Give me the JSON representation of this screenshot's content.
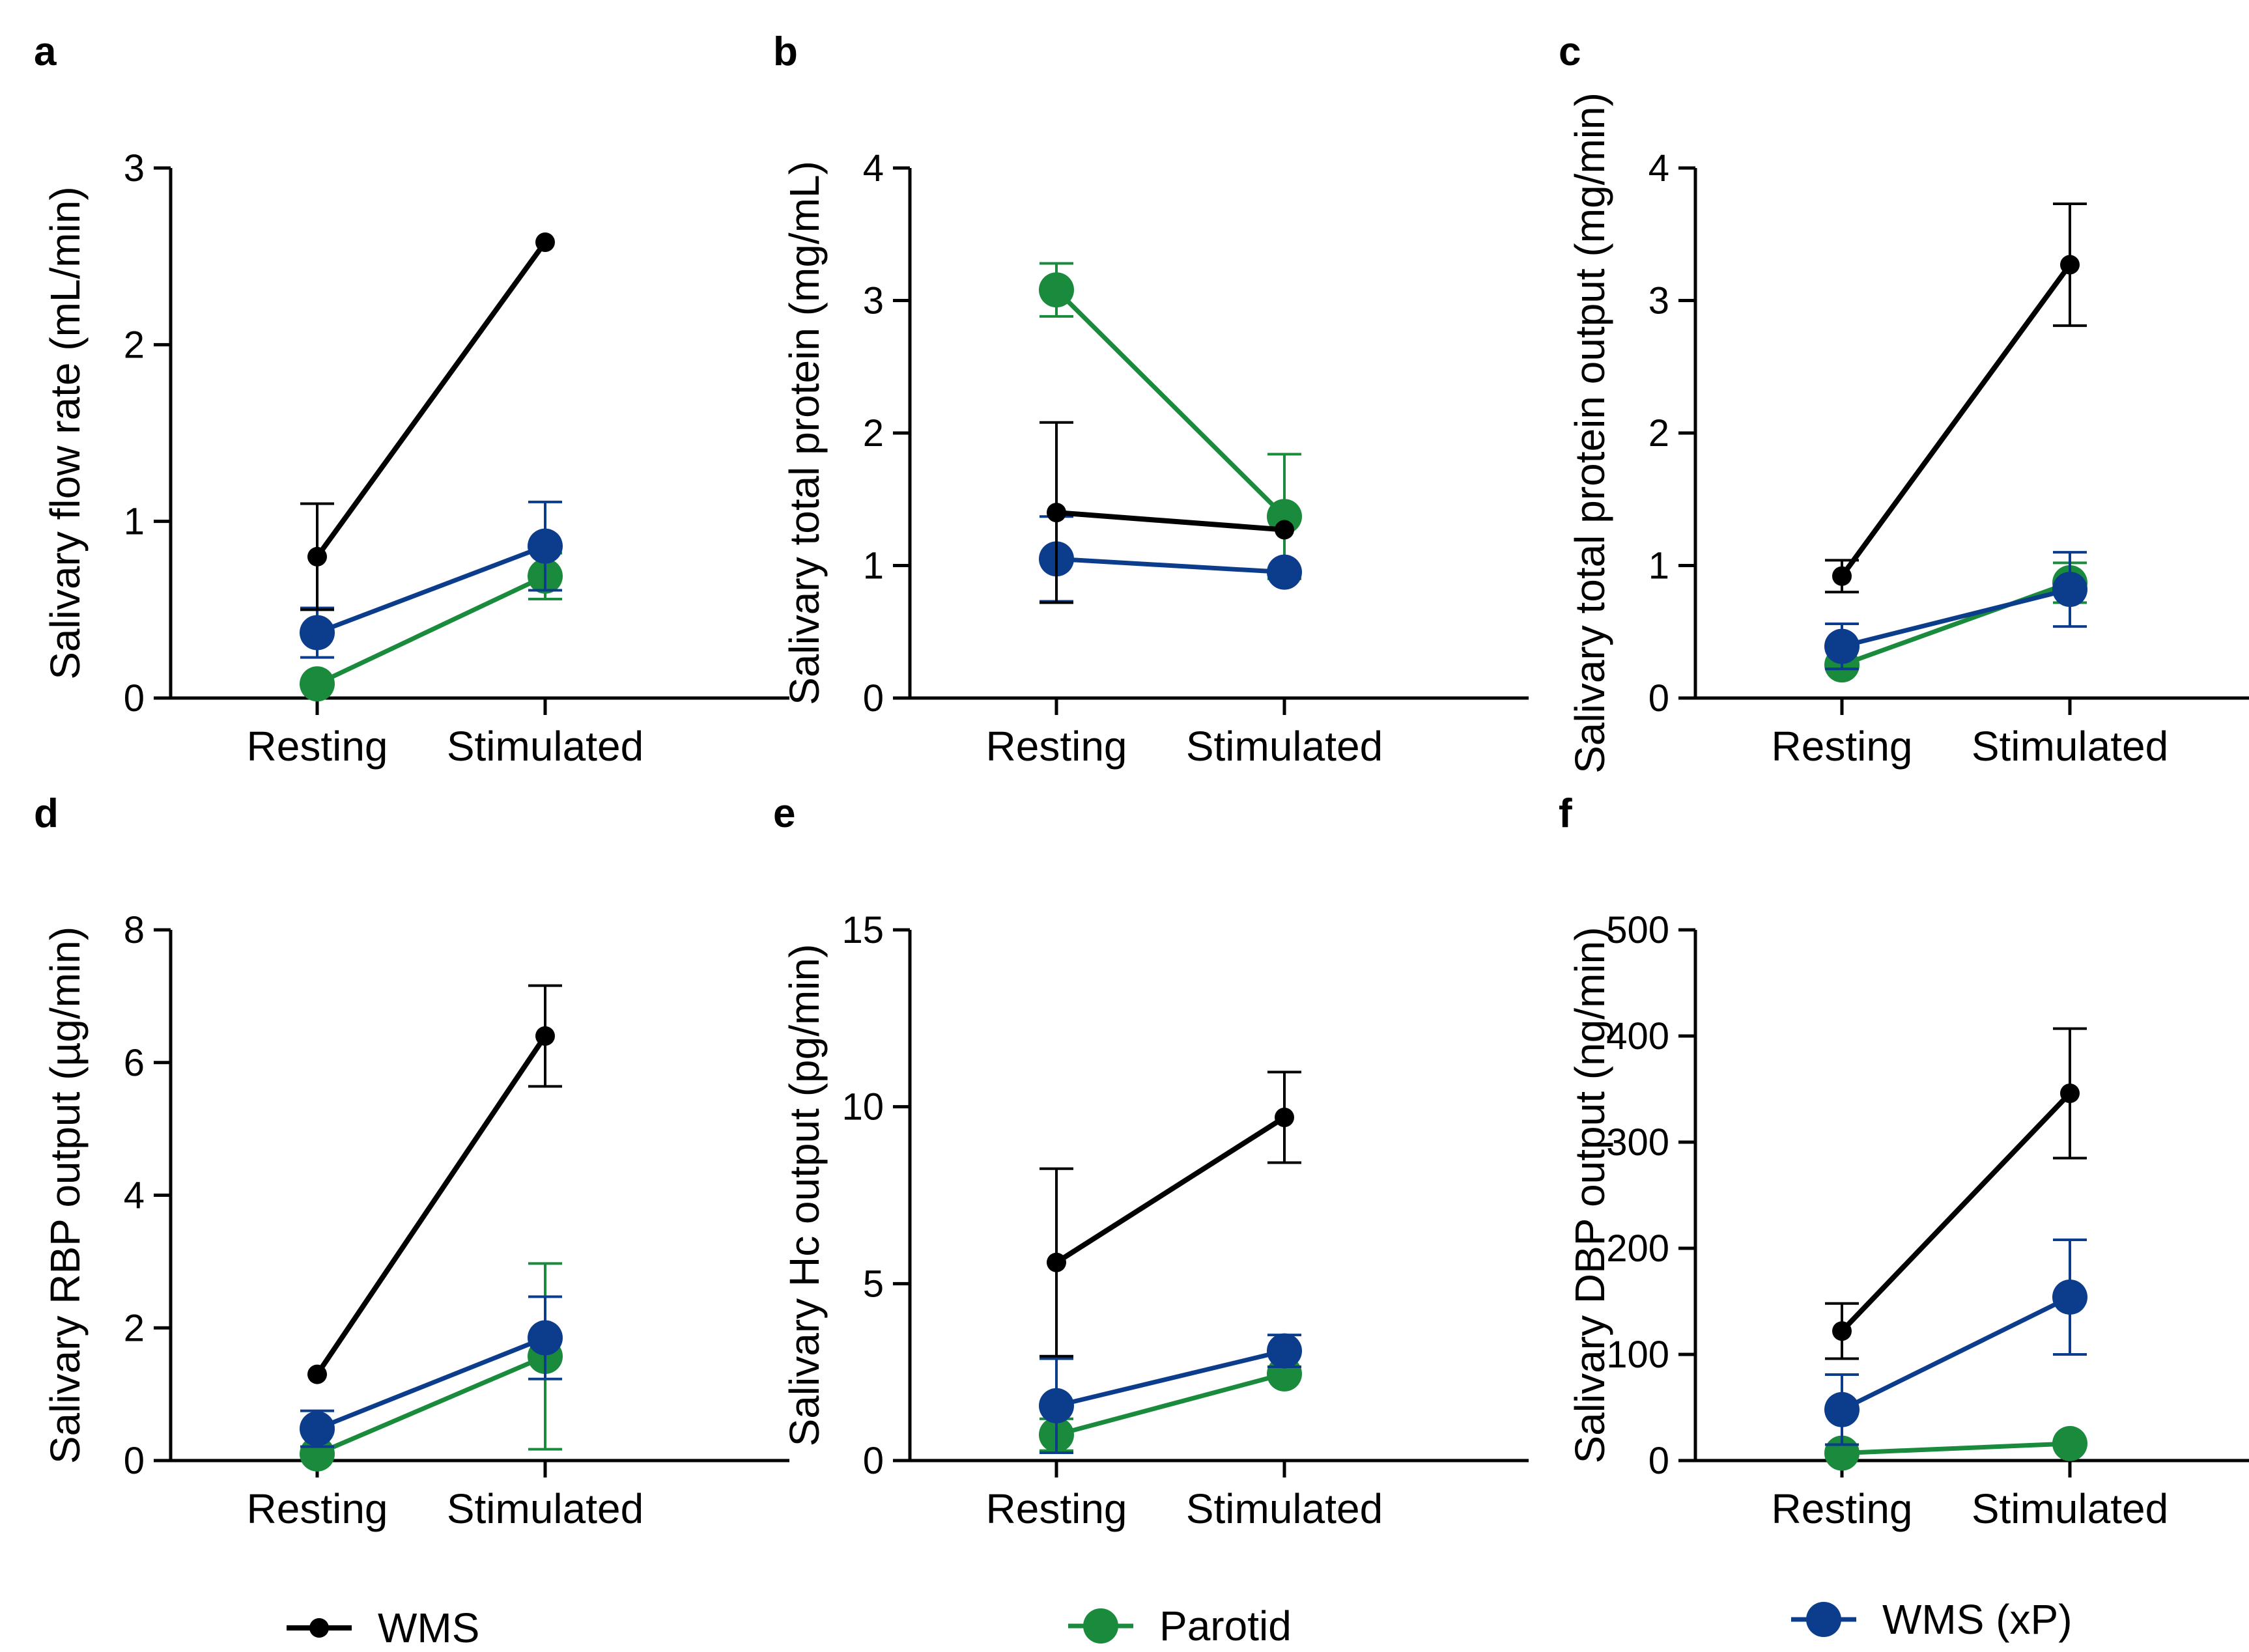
{
  "colors": {
    "WMS": "#000000",
    "Parotid": "#1a8a3c",
    "WMS (xP)": "#0b3d8c"
  },
  "legend": [
    "WMS",
    "Parotid",
    "WMS (xP)"
  ],
  "chart_data": [
    {
      "panel": "a",
      "type": "line",
      "categories": [
        "Resting",
        "Stimulated"
      ],
      "ylabel": "Salivary flow rate (mL/min)",
      "ylim": [
        0,
        3
      ],
      "yticks": [
        0,
        1,
        2,
        3
      ],
      "series": [
        {
          "name": "WMS",
          "values": [
            0.8,
            2.58
          ],
          "err": [
            0.3,
            0
          ]
        },
        {
          "name": "WMS (xP)",
          "values": [
            0.37,
            0.86
          ],
          "err": [
            0.14,
            0.25
          ]
        },
        {
          "name": "Parotid",
          "values": [
            0.08,
            0.69
          ],
          "err": [
            0,
            0.13
          ]
        }
      ]
    },
    {
      "panel": "b",
      "type": "line",
      "categories": [
        "Resting",
        "Stimulated"
      ],
      "ylabel": "Salivary total protein (mg/mL)",
      "ylim": [
        0,
        4
      ],
      "yticks": [
        0,
        1,
        2,
        3,
        4
      ],
      "series": [
        {
          "name": "WMS",
          "values": [
            1.4,
            1.27
          ],
          "err": [
            0.68,
            0
          ]
        },
        {
          "name": "WMS (xP)",
          "values": [
            1.05,
            0.95
          ],
          "err": [
            0.32,
            0
          ]
        },
        {
          "name": "Parotid",
          "values": [
            3.08,
            1.37
          ],
          "err": [
            0.2,
            0.47
          ]
        }
      ]
    },
    {
      "panel": "c",
      "type": "line",
      "categories": [
        "Resting",
        "Stimulated"
      ],
      "ylabel": "Salivary total protein output (mg/min)",
      "ylim": [
        0,
        4
      ],
      "yticks": [
        0,
        1,
        2,
        3,
        4
      ],
      "series": [
        {
          "name": "WMS",
          "values": [
            0.92,
            3.27
          ],
          "err": [
            0.12,
            0.46
          ]
        },
        {
          "name": "WMS (xP)",
          "values": [
            0.39,
            0.82
          ],
          "err": [
            0.17,
            0.28
          ]
        },
        {
          "name": "Parotid",
          "values": [
            0.25,
            0.87
          ],
          "err": [
            0,
            0.15
          ]
        }
      ]
    },
    {
      "panel": "d",
      "type": "line",
      "categories": [
        "Resting",
        "Stimulated"
      ],
      "ylabel": "Salivary RBP output (µg/min)",
      "ylim": [
        0,
        8
      ],
      "yticks": [
        0,
        2,
        4,
        6,
        8
      ],
      "series": [
        {
          "name": "WMS",
          "values": [
            1.3,
            6.4
          ],
          "err": [
            0,
            0.76
          ]
        },
        {
          "name": "WMS (xP)",
          "values": [
            0.48,
            1.85
          ],
          "err": [
            0.27,
            0.62
          ]
        },
        {
          "name": "Parotid",
          "values": [
            0.1,
            1.57
          ],
          "err": [
            0,
            1.4
          ]
        }
      ]
    },
    {
      "panel": "e",
      "type": "line",
      "categories": [
        "Resting",
        "Stimulated"
      ],
      "ylabel": "Salivary Hc output (pg/min)",
      "ylim": [
        0,
        15
      ],
      "yticks": [
        0,
        5,
        10,
        15
      ],
      "series": [
        {
          "name": "WMS",
          "values": [
            5.6,
            9.7
          ],
          "err": [
            2.65,
            1.28
          ]
        },
        {
          "name": "WMS (xP)",
          "values": [
            1.55,
            3.1
          ],
          "err": [
            1.33,
            0.45
          ]
        },
        {
          "name": "Parotid",
          "values": [
            0.73,
            2.45
          ],
          "err": [
            0.45,
            0
          ]
        }
      ]
    },
    {
      "panel": "f",
      "type": "line",
      "categories": [
        "Resting",
        "Stimulated"
      ],
      "ylabel": "Salivary DBP output (ng/min)",
      "ylim": [
        0,
        500
      ],
      "yticks": [
        0,
        100,
        200,
        300,
        400,
        500
      ],
      "series": [
        {
          "name": "WMS",
          "values": [
            122,
            346
          ],
          "err": [
            26,
            61
          ]
        },
        {
          "name": "WMS (xP)",
          "values": [
            48,
            154
          ],
          "err": [
            33,
            54
          ]
        },
        {
          "name": "Parotid",
          "values": [
            7,
            16
          ],
          "err": [
            0,
            0
          ]
        }
      ]
    }
  ]
}
